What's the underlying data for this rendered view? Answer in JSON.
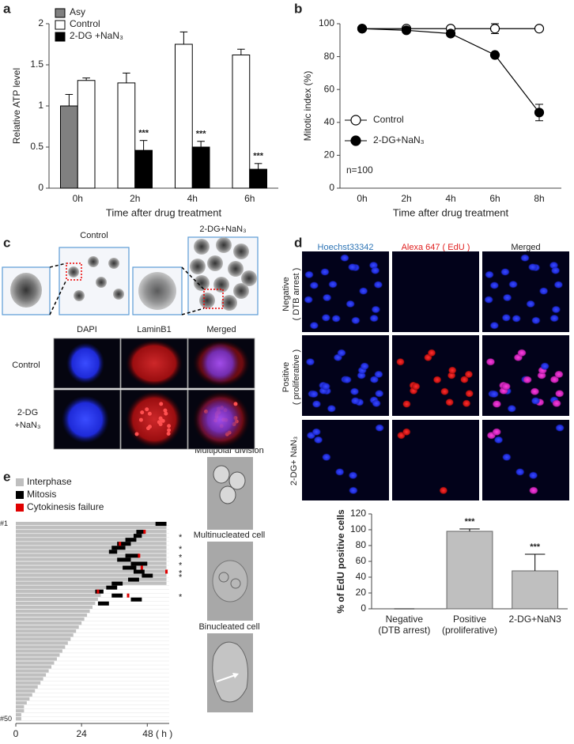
{
  "panel_labels": [
    "a",
    "b",
    "c",
    "d",
    "e"
  ],
  "chart_data": [
    {
      "type": "bar",
      "ylabel": "Relative  ATP level",
      "xlabel": "Time after drug treatment",
      "categories": [
        "0h",
        "2h",
        "4h",
        "6h"
      ],
      "series": [
        {
          "name": "Asy",
          "color": "#808080",
          "values": [
            1.0,
            null,
            null,
            null
          ],
          "errors": [
            0.14,
            null,
            null,
            null
          ]
        },
        {
          "name": "Control",
          "color": "#ffffff",
          "values": [
            1.31,
            1.28,
            1.75,
            1.62
          ],
          "errors": [
            0.03,
            0.12,
            0.15,
            0.07
          ]
        },
        {
          "name": "2-DG +NaN₃",
          "color": "#000000",
          "values": [
            null,
            0.46,
            0.5,
            0.23
          ],
          "errors": [
            null,
            0.12,
            0.07,
            0.07
          ],
          "significance": [
            null,
            "***",
            "***",
            "***"
          ]
        }
      ],
      "ylim": [
        0,
        2
      ],
      "yticks": [
        0,
        0.5,
        1,
        1.5,
        2
      ],
      "legend": "upper left"
    },
    {
      "type": "line",
      "ylabel": "Mitotic index (%)",
      "xlabel": "Time after drug treatment",
      "categories": [
        "0h",
        "2h",
        "4h",
        "6h",
        "8h"
      ],
      "series": [
        {
          "name": "Control",
          "color": "#ffffff",
          "values": [
            97,
            97,
            97,
            97,
            97
          ],
          "errors": [
            0,
            0,
            0,
            3,
            0
          ]
        },
        {
          "name": "2-DG+NaN₃",
          "color": "#000000",
          "values": [
            97,
            96,
            94,
            81,
            46
          ],
          "errors": [
            0,
            0,
            0,
            0,
            5
          ]
        }
      ],
      "ylim": [
        0,
        100
      ],
      "yticks": [
        0,
        20,
        40,
        60,
        80,
        100
      ],
      "legend": "lower left",
      "annotation": "n=100"
    },
    {
      "type": "bar",
      "ylabel": "% of EdU positive cells",
      "categories": [
        [
          "Negative",
          "(DTB arrest)"
        ],
        [
          "Positive",
          "(proliferative)"
        ],
        [
          "2-DG+NaN3"
        ]
      ],
      "values": [
        0,
        98,
        48
      ],
      "errors": [
        0,
        3,
        21
      ],
      "significance": [
        null,
        "***",
        "***"
      ],
      "color": "#bfbfbf",
      "ylim": [
        0,
        120
      ],
      "yticks": [
        0,
        20,
        40,
        60,
        80,
        100,
        120
      ]
    },
    {
      "type": "timeline",
      "legend": [
        {
          "name": "Interphase",
          "color": "#bfbfbf"
        },
        {
          "name": "Mitosis",
          "color": "#000000"
        },
        {
          "name": "Cytokinesis failure",
          "color": "#e00000"
        }
      ],
      "interphase_end": [
        55,
        55,
        55,
        55,
        55,
        55,
        55,
        55,
        55,
        55,
        55,
        55,
        55,
        55,
        55,
        55,
        33,
        32,
        31,
        30,
        29,
        28,
        27,
        26,
        25,
        24,
        23,
        22,
        21,
        20,
        19,
        18,
        17,
        16,
        15,
        14,
        13,
        12,
        11,
        10,
        9,
        8,
        7,
        6,
        5,
        4,
        3,
        3,
        2,
        2
      ],
      "mitosis": [
        [
          1,
          51,
          55
        ],
        [
          3,
          44,
          47
        ],
        [
          4,
          43,
          46
        ],
        [
          5,
          40,
          44
        ],
        [
          6,
          37,
          42
        ],
        [
          7,
          35,
          40
        ],
        [
          8,
          34,
          37
        ],
        [
          9,
          40,
          45
        ],
        [
          10,
          37,
          42
        ],
        [
          11,
          42,
          48
        ],
        [
          12,
          39,
          44
        ],
        [
          13,
          43,
          47
        ],
        [
          14,
          46,
          50
        ],
        [
          15,
          41,
          45
        ],
        [
          16,
          35,
          39
        ],
        [
          17,
          33,
          37
        ],
        [
          18,
          29,
          32
        ],
        [
          19,
          35,
          39
        ],
        [
          20,
          42,
          46
        ],
        [
          21,
          30,
          34
        ]
      ],
      "cytokinesis_failure": [
        [
          3,
          47
        ],
        [
          6,
          38
        ],
        [
          9,
          45
        ],
        [
          12,
          46
        ],
        [
          13,
          55
        ],
        [
          18,
          30
        ],
        [
          19,
          41
        ]
      ],
      "annotations": [
        {
          "row": 4,
          "text": "*"
        },
        {
          "row": 7,
          "text": "*"
        },
        {
          "row": 9,
          "text": "*"
        },
        {
          "row": 11,
          "text": "*"
        },
        {
          "row": 13,
          "text": "*"
        },
        {
          "row": 14,
          "text": "*"
        },
        {
          "row": 19,
          "text": "*"
        }
      ],
      "row_labels": [
        {
          "value": 1,
          "label": "#1"
        },
        {
          "value": 50,
          "label": "#50"
        }
      ],
      "xlim": [
        0,
        56
      ],
      "xticks": [
        0,
        24,
        {
          "value": 48,
          "label": "48 ( h )"
        }
      ]
    }
  ],
  "panel_c": {
    "top_labels": [
      "Control",
      "2-DG+NaN₃"
    ],
    "columns": [
      "DAPI",
      "LaminB1",
      "Merged"
    ],
    "rows": [
      [
        "Control"
      ],
      [
        "2-DG",
        "+NaN₃"
      ]
    ]
  },
  "panel_d": {
    "columns": [
      "Hoechst33342",
      "Alexa 647 ( EdU )",
      "Merged"
    ],
    "rows": [
      [
        "Negative",
        "( DTB arrest )"
      ],
      [
        "Positive",
        "( proliferative )"
      ],
      [
        "2-DG+ NaN₃"
      ]
    ]
  },
  "panel_e_images": [
    "Multipolar division",
    "Multinucleated cell",
    "Binucleated cell"
  ]
}
